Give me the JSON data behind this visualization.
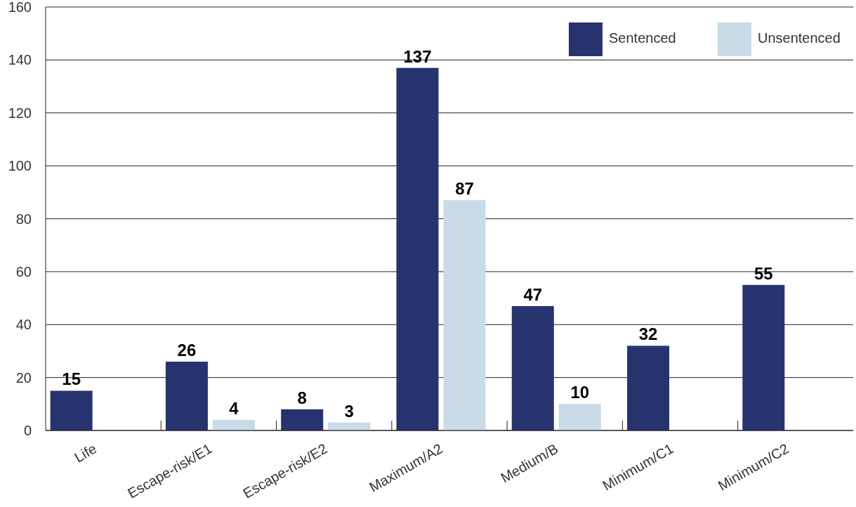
{
  "chart_data": {
    "type": "bar",
    "categories": [
      "Life",
      "Escape-risk/E1",
      "Escape-risk/E2",
      "Maximum/A2",
      "Medium/B",
      "Minimum/C1",
      "Minimum/C2"
    ],
    "series": [
      {
        "name": "Sentenced",
        "color": "#27336f",
        "values": [
          15,
          26,
          8,
          137,
          47,
          32,
          55
        ]
      },
      {
        "name": "Unsentenced",
        "color": "#c8dbe6",
        "values": [
          null,
          4,
          3,
          87,
          10,
          null,
          null
        ]
      }
    ],
    "ylim": [
      0,
      160
    ],
    "yticks": [
      0,
      20,
      40,
      60,
      80,
      100,
      120,
      140,
      160
    ],
    "grid": "y",
    "legend": "top right",
    "data_labels": true
  }
}
